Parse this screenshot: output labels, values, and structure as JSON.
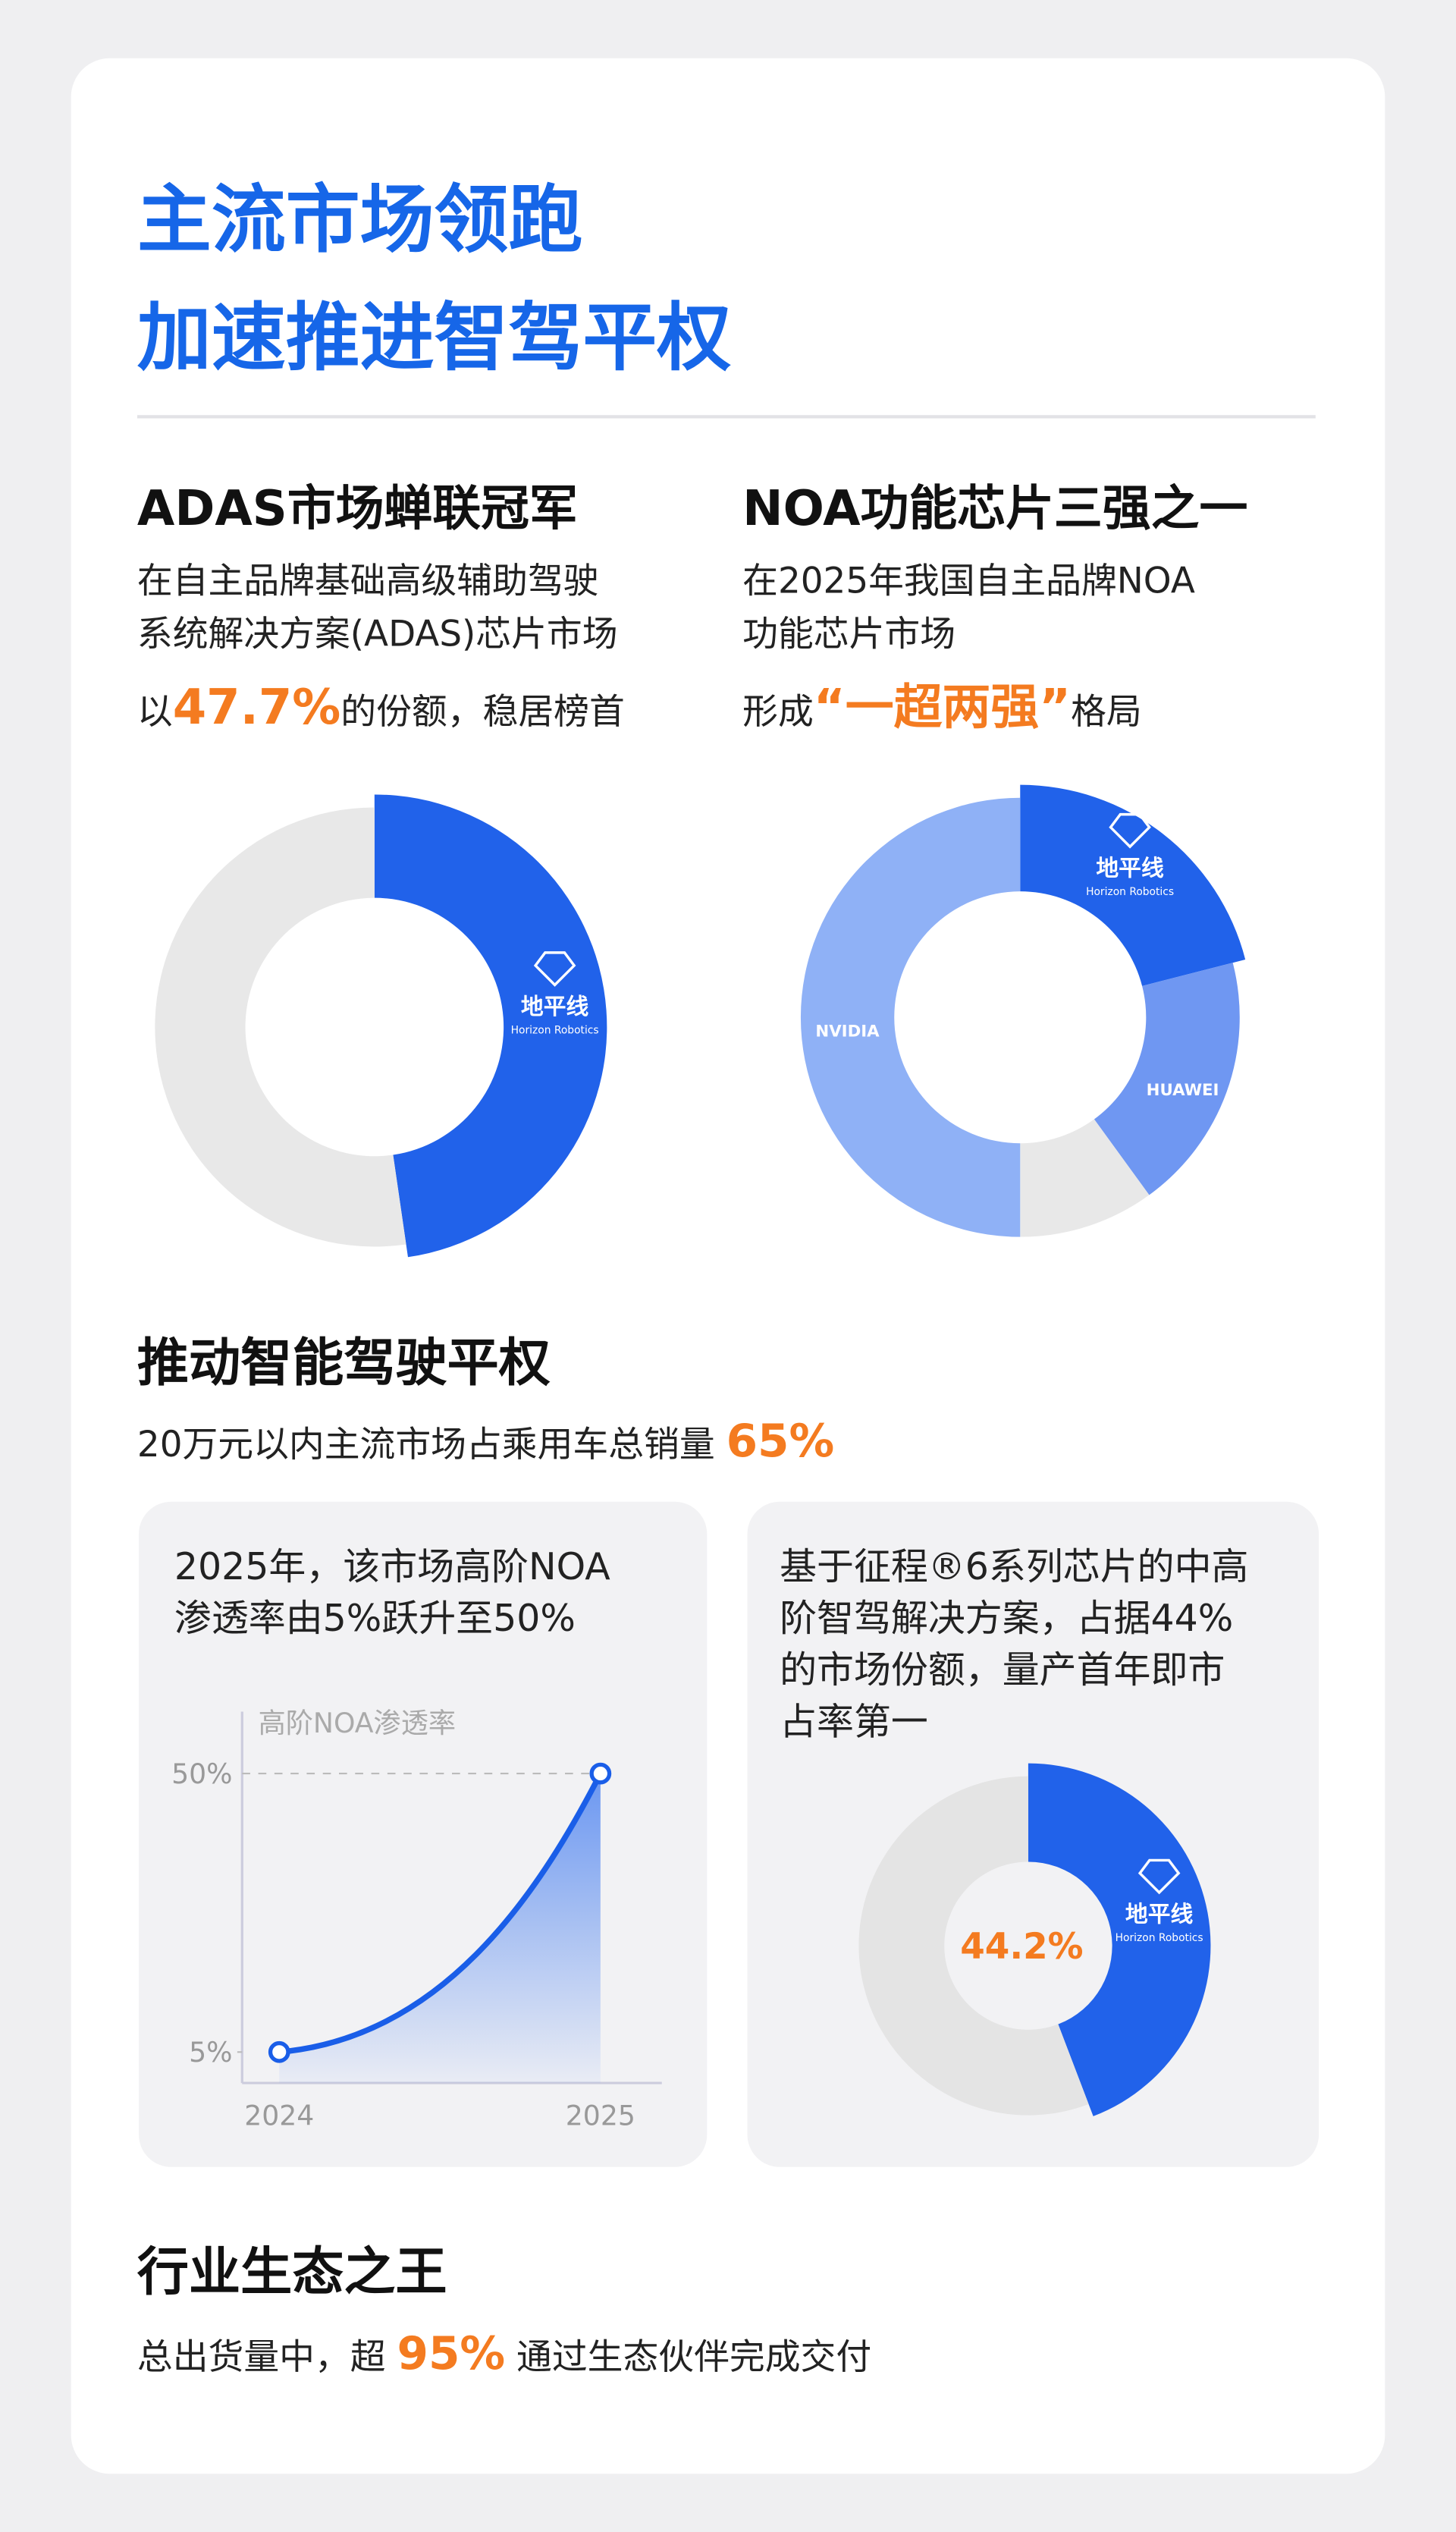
{
  "header": {
    "title": [
      "主流市场领跑",
      "加速推进智驾平权"
    ]
  },
  "sections": [
    {
      "heading": "ADAS市场蝉联冠军",
      "lines": [
        [
          {
            "text": "在自主品牌基础高级辅助驾驶"
          }
        ],
        [
          {
            "text": "系统解决方案(ADAS)芯片市场"
          }
        ],
        [
          {
            "text": "以"
          },
          {
            "text": "47.7%",
            "highlight": true
          },
          {
            "text": "的份额，稳居榜首"
          }
        ]
      ]
    },
    {
      "heading": "NOA功能芯片三强之一",
      "lines": [
        [
          {
            "text": "在2025年我国自主品牌NOA"
          }
        ],
        [
          {
            "text": "功能芯片市场"
          }
        ],
        [
          {
            "text": "形成"
          },
          {
            "text": "“一超两强”",
            "highlight": true
          },
          {
            "text": "格局"
          }
        ]
      ]
    },
    {
      "heading": "推动智能驾驶平权",
      "lines": [
        [
          {
            "text": "20万元以内主流市场占乘用车总销量 "
          },
          {
            "text": "65%",
            "highlight": true
          }
        ]
      ]
    },
    {
      "heading": "行业生态之王",
      "lines": [
        [
          {
            "text": "总出货量中，超 "
          },
          {
            "text": "95%",
            "highlight": true
          },
          {
            "text": " 通过生态伙伴完成交付"
          }
        ]
      ]
    }
  ],
  "panels": [
    {
      "lines": [
        [
          {
            "text": "2025年，该市场高阶NOA"
          }
        ],
        [
          {
            "text": "渗透率由5%跃升至50%"
          }
        ]
      ]
    },
    {
      "lines": [
        [
          {
            "text": "基于征程®6系列芯片的中高"
          }
        ],
        [
          {
            "text": "阶智驾解决方案，占据44%"
          }
        ],
        [
          {
            "text": "的市场份额，量产首年即市"
          }
        ],
        [
          {
            "text": "占率第一"
          }
        ]
      ]
    }
  ],
  "chart_data": [
    {
      "type": "donut",
      "categories": [
        "地平线",
        null
      ],
      "sublabels": [
        "Horizon Robotics",
        null
      ],
      "values": [
        47.7,
        52.3
      ],
      "colors": [
        "#2162ea",
        "#e8e8e8"
      ]
    },
    {
      "type": "donut",
      "categories": [
        "地平线",
        "HUAWEI",
        null,
        "NVIDIA"
      ],
      "sublabels": [
        "Horizon Robotics",
        null,
        null,
        null
      ],
      "values": [
        21,
        19,
        10,
        50
      ],
      "colors": [
        "#2162ea",
        "#6f97f2",
        "#e8e8e8",
        "#8fb1f6"
      ]
    },
    {
      "type": "line",
      "ylabel": "高阶NOA渗透率",
      "categories": [
        "2024",
        "2025"
      ],
      "values": [
        5,
        50
      ],
      "ylim": [
        0,
        60
      ],
      "yticks": [
        {
          "value": 5,
          "label": "5%"
        },
        {
          "value": 50,
          "label": "50%"
        }
      ],
      "color": "#1a5ee8"
    },
    {
      "type": "donut",
      "categories": [
        "地平线",
        null
      ],
      "sublabels": [
        "Horizon Robotics",
        null
      ],
      "values": [
        44.2,
        55.8
      ],
      "value_labels": [
        "44.2%",
        null
      ],
      "colors": [
        "#2162ea",
        "#e4e4e4"
      ]
    }
  ]
}
